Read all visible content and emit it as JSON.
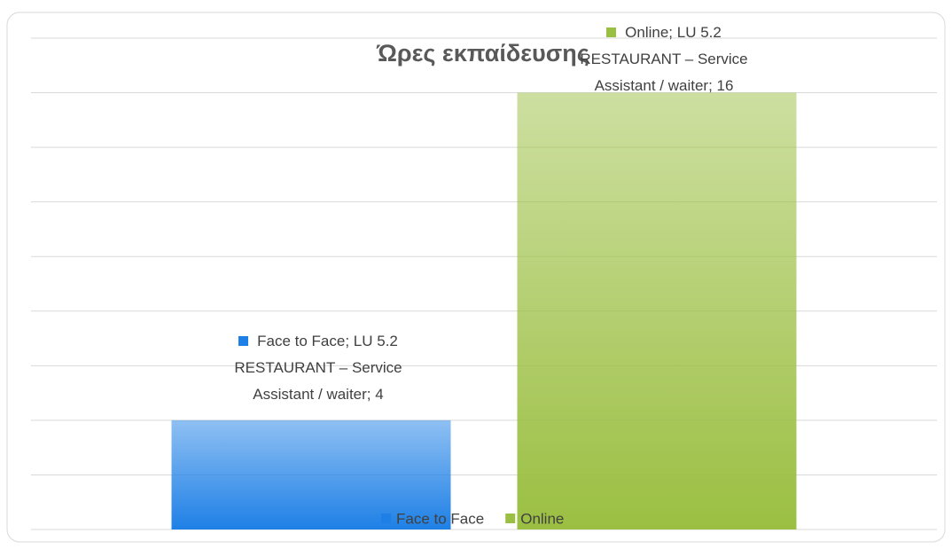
{
  "chart_data": {
    "type": "bar",
    "title": "Ώρες εκπαίδευσης",
    "categories": [
      "LU 5.2 RESTAURANT – Service Assistant / waiter"
    ],
    "series": [
      {
        "name": "Face to Face",
        "color": "#1e80e6",
        "values": [
          4
        ],
        "value_labels": [
          "Face to Face; LU 5.2 RESTAURANT – Service Assistant / waiter; 4"
        ]
      },
      {
        "name": "Online",
        "color": "#9bbf42",
        "values": [
          16
        ],
        "value_labels": [
          "Online; LU 5.2 RESTAURANT – Service Assistant / waiter; 16"
        ]
      }
    ],
    "ylim": [
      0,
      18
    ],
    "yticks": [
      0,
      2,
      4,
      6,
      8,
      10,
      12,
      14,
      16,
      18
    ],
    "grid": true,
    "legend": "bottom"
  }
}
